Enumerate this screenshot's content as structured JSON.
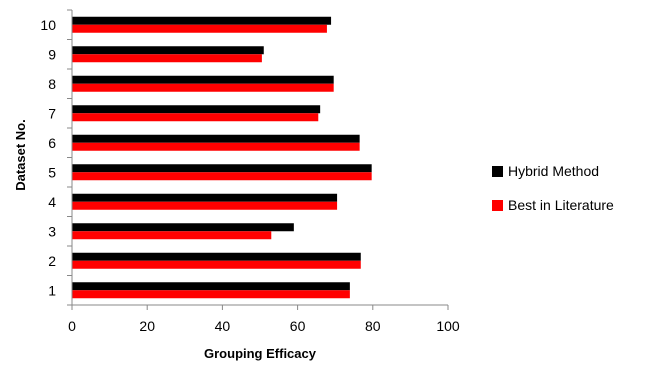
{
  "chart_data": {
    "type": "bar",
    "orientation": "horizontal",
    "categories": [
      "1",
      "2",
      "3",
      "4",
      "5",
      "6",
      "7",
      "8",
      "9",
      "10"
    ],
    "series": [
      {
        "name": "Hybrid Method",
        "color": "#000000",
        "values": [
          73.9,
          76.8,
          59.0,
          70.5,
          79.7,
          76.5,
          66.0,
          69.6,
          51.0,
          68.9
        ]
      },
      {
        "name": "Best in Literature",
        "color": "#ff0000",
        "values": [
          73.9,
          76.8,
          53.0,
          70.5,
          79.7,
          76.5,
          65.5,
          69.6,
          50.5,
          67.8
        ]
      }
    ],
    "xlabel": "Grouping Efficacy",
    "ylabel": "Dataset No.",
    "xlim": [
      0,
      100
    ],
    "xticks": [
      0,
      20,
      40,
      60,
      80,
      100
    ],
    "grid": false,
    "legend_position": "right"
  }
}
